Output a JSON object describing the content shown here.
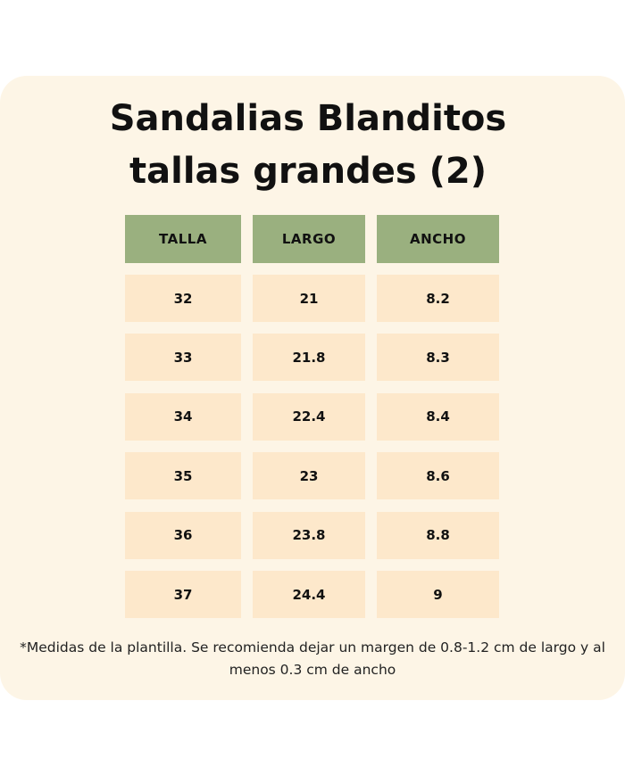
{
  "title": [
    "Sandalias Blanditos",
    "tallas grandes (2)"
  ],
  "table": {
    "headers": [
      "TALLA",
      "LARGO",
      "ANCHO"
    ],
    "rows": [
      [
        "32",
        "21",
        "8.2"
      ],
      [
        "33",
        "21.8",
        "8.3"
      ],
      [
        "34",
        "22.4",
        "8.4"
      ],
      [
        "35",
        "23",
        "8.6"
      ],
      [
        "36",
        "23.8",
        "8.8"
      ],
      [
        "37",
        "24.4",
        "9"
      ]
    ]
  },
  "footnote": "*Medidas de la plantilla. Se recomienda dejar un margen de 0.8-1.2 cm de largo y al menos 0.3 cm de ancho"
}
